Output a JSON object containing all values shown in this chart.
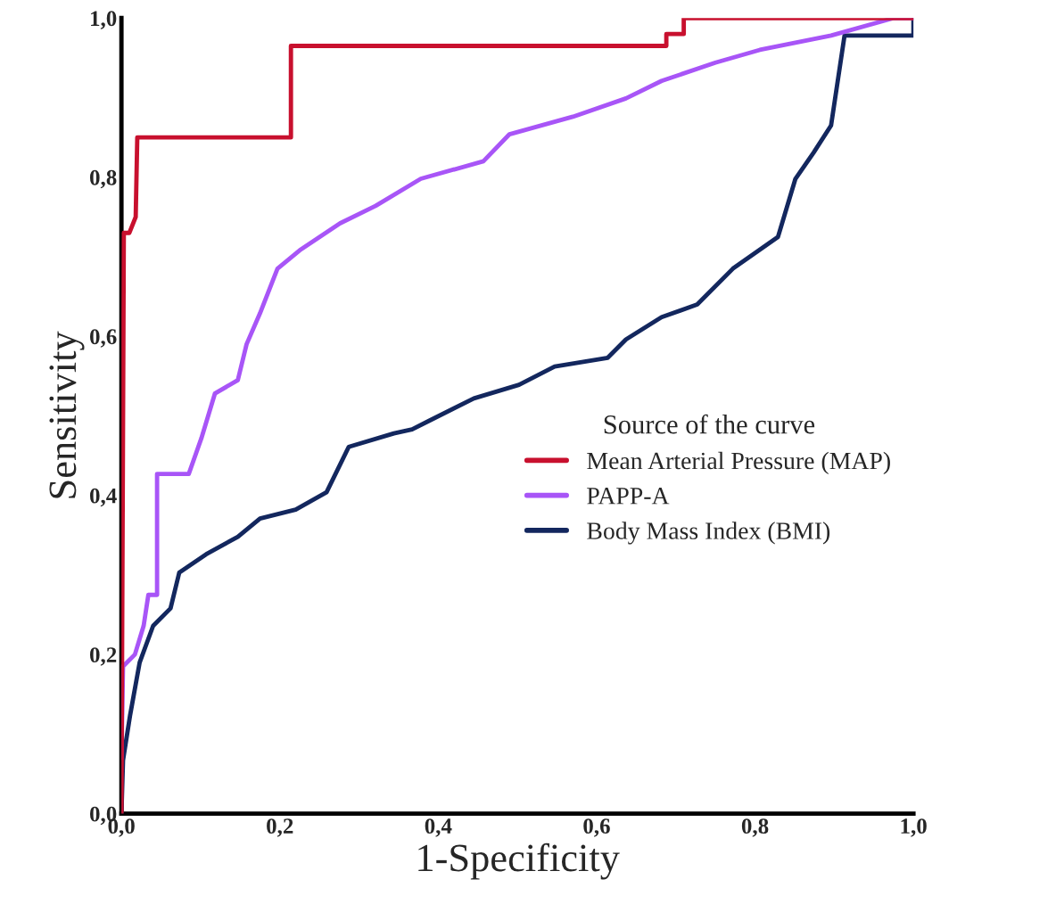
{
  "chart_data": {
    "type": "line",
    "xlabel": "1-Specificity",
    "ylabel": "Sensitivity",
    "legend_title": "Source of the curve",
    "legend": "right",
    "grid": false,
    "xlim": [
      0,
      1
    ],
    "ylim": [
      0,
      1
    ],
    "xticks": [
      {
        "value": 0,
        "label": "0,0"
      },
      {
        "value": 0.2,
        "label": "0,2"
      },
      {
        "value": 0.4,
        "label": "0,4"
      },
      {
        "value": 0.6,
        "label": "0,6"
      },
      {
        "value": 0.8,
        "label": "0,8"
      },
      {
        "value": 1,
        "label": "1,0"
      }
    ],
    "yticks": [
      {
        "value": 0,
        "label": "0,0"
      },
      {
        "value": 0.2,
        "label": "0,2"
      },
      {
        "value": 0.4,
        "label": "0,4"
      },
      {
        "value": 0.6,
        "label": "0,6"
      },
      {
        "value": 0.8,
        "label": "0,8"
      },
      {
        "value": 1,
        "label": "1,0"
      }
    ],
    "series": [
      {
        "name": "Mean Arterial Pressure (MAP)",
        "color": "#c8102e",
        "x": [
          0,
          0.003,
          0.01,
          0.018,
          0.02,
          0.214,
          0.214,
          0.688,
          0.688,
          0.71,
          0.71,
          1.0
        ],
        "values": [
          0,
          0.73,
          0.73,
          0.75,
          0.85,
          0.85,
          0.965,
          0.965,
          0.98,
          0.98,
          1.0,
          1.0
        ]
      },
      {
        "name": "PAPP-A",
        "color": "#a855f7",
        "x": [
          0,
          0.002,
          0.017,
          0.028,
          0.034,
          0.045,
          0.045,
          0.085,
          0.101,
          0.118,
          0.147,
          0.158,
          0.175,
          0.197,
          0.225,
          0.276,
          0.321,
          0.378,
          0.457,
          0.49,
          0.57,
          0.637,
          0.682,
          0.75,
          0.806,
          0.896,
          0.975,
          1.0
        ],
        "values": [
          0.07,
          0.185,
          0.2,
          0.236,
          0.275,
          0.275,
          0.427,
          0.427,
          0.472,
          0.528,
          0.545,
          0.59,
          0.629,
          0.685,
          0.708,
          0.742,
          0.764,
          0.798,
          0.82,
          0.854,
          0.876,
          0.899,
          0.921,
          0.944,
          0.96,
          0.978,
          1.0,
          1.0
        ]
      },
      {
        "name": "Body Mass Index (BMI)",
        "color": "#13275e",
        "x": [
          0,
          0.002,
          0.011,
          0.023,
          0.04,
          0.062,
          0.073,
          0.107,
          0.147,
          0.175,
          0.22,
          0.259,
          0.287,
          0.344,
          0.367,
          0.389,
          0.445,
          0.502,
          0.547,
          0.614,
          0.637,
          0.682,
          0.727,
          0.772,
          0.829,
          0.851,
          0.874,
          0.896,
          0.913,
          1.0,
          1.0
        ],
        "values": [
          0,
          0.067,
          0.124,
          0.19,
          0.236,
          0.258,
          0.303,
          0.326,
          0.348,
          0.371,
          0.382,
          0.404,
          0.461,
          0.478,
          0.483,
          0.494,
          0.522,
          0.539,
          0.562,
          0.573,
          0.596,
          0.624,
          0.64,
          0.685,
          0.725,
          0.798,
          0.831,
          0.865,
          0.978,
          0.978,
          1.0
        ]
      }
    ]
  }
}
